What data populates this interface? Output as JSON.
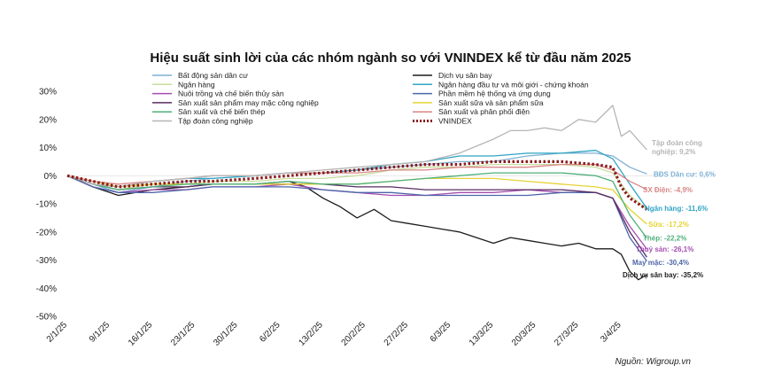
{
  "chart_data": {
    "type": "line",
    "title": "Hiệu suất sinh lời của các nhóm ngành so với VNINDEX kể từ đầu năm 2025",
    "source": "Nguồn: Wigroup.vn",
    "ylim": [
      -50,
      30
    ],
    "yticks": [
      30,
      20,
      10,
      0,
      -10,
      -20,
      -30,
      -40,
      -50
    ],
    "ytick_labels": [
      "30%",
      "20%",
      "10%",
      "0%",
      "-10%",
      "-20%",
      "-30%",
      "-40%",
      "-50%"
    ],
    "x_tick_labels": [
      "2/1/25",
      "9/1/25",
      "16/1/25",
      "23/1/25",
      "30/1/25",
      "6/2/25",
      "13/2/25",
      "20/2/25",
      "27/2/25",
      "6/3/25",
      "13/3/25",
      "20/3/25",
      "27/3/25",
      "3/4/25"
    ],
    "x_tick_positions": [
      0,
      5,
      10,
      15,
      20,
      25,
      30,
      35,
      40,
      45,
      50,
      55,
      60,
      65
    ],
    "xlim": [
      0,
      69
    ],
    "grid": false,
    "legend_position": "top",
    "series": [
      {
        "name": "Bất động sản dân cư",
        "color": "#7fb0d6",
        "dashed": false,
        "x": [
          0,
          3,
          6,
          10,
          14,
          17,
          22,
          26,
          30,
          34,
          38,
          42,
          46,
          50,
          54,
          58,
          62,
          64,
          66,
          68
        ],
        "y": [
          0,
          -3,
          -6,
          -4,
          -2,
          -1,
          0,
          1,
          1,
          2,
          3,
          4,
          5,
          5,
          7,
          8,
          8,
          7,
          3,
          0.6
        ],
        "end_label": "BĐS Dân cư: 0,6%",
        "end_y": 0.6
      },
      {
        "name": "Dịch vụ sân bay",
        "color": "#1c1c1c",
        "dashed": false,
        "x": [
          0,
          3,
          6,
          10,
          14,
          17,
          22,
          26,
          28,
          30,
          32,
          34,
          36,
          38,
          40,
          42,
          44,
          46,
          48,
          50,
          52,
          54,
          56,
          58,
          60,
          62,
          64,
          65,
          66,
          67,
          68
        ],
        "y": [
          0,
          -4,
          -7,
          -5,
          -4,
          -3,
          -3,
          -2,
          -4,
          -8,
          -11,
          -15,
          -12,
          -16,
          -17,
          -18,
          -19,
          -20,
          -22,
          -24,
          -22,
          -23,
          -24,
          -25,
          -24,
          -26,
          -26,
          -28,
          -34,
          -37,
          -35.2
        ],
        "end_label": "Dịch vụ sân bay: -35,2%",
        "end_y": -35.2
      },
      {
        "name": "Ngân hàng",
        "color": "#c9dd9e",
        "dashed": false,
        "x": [
          0,
          3,
          6,
          10,
          14,
          17,
          22,
          26,
          30,
          34,
          38,
          42,
          46,
          50,
          54,
          58,
          62,
          64,
          66,
          68
        ],
        "y": [
          0,
          -3,
          -5,
          -3,
          -3,
          -2,
          -2,
          -1,
          -1,
          0,
          2,
          3,
          3,
          4,
          4,
          4,
          3,
          1,
          -7,
          -12
        ],
        "end_label": "",
        "end_y": 0
      },
      {
        "name": "Ngân hàng đầu tư và môi giới - chứng khoán",
        "color": "#2fa4c4",
        "dashed": false,
        "x": [
          0,
          3,
          6,
          10,
          14,
          17,
          22,
          26,
          30,
          34,
          38,
          42,
          46,
          50,
          54,
          58,
          62,
          64,
          66,
          68
        ],
        "y": [
          0,
          -3,
          -4,
          -2,
          -1,
          -1,
          0,
          1,
          1,
          2,
          4,
          5,
          7,
          7,
          8,
          8,
          9,
          6,
          -3,
          -11.6
        ],
        "end_label": "Ngân hàng: -11,6%",
        "end_y": -11.6
      },
      {
        "name": "Nuôi trồng và chế biến thủy sản",
        "color": "#a54db0",
        "dashed": false,
        "x": [
          0,
          3,
          6,
          10,
          14,
          17,
          22,
          26,
          30,
          34,
          38,
          42,
          46,
          50,
          54,
          58,
          62,
          64,
          66,
          68
        ],
        "y": [
          0,
          -4,
          -6,
          -5,
          -5,
          -4,
          -4,
          -3,
          -5,
          -6,
          -7,
          -7,
          -6,
          -6,
          -5,
          -6,
          -6,
          -8,
          -18,
          -26.1
        ],
        "end_label": "Thuỷ sản: -26,1%",
        "end_y": -26.1
      },
      {
        "name": "Phần mềm hệ thống và ứng dụng",
        "color": "#4d66a8",
        "dashed": false,
        "x": [
          0,
          3,
          6,
          10,
          14,
          17,
          22,
          26,
          30,
          34,
          38,
          42,
          46,
          50,
          54,
          58,
          62,
          64,
          66,
          68
        ],
        "y": [
          0,
          -4,
          -6,
          -6,
          -5,
          -4,
          -4,
          -4,
          -5,
          -6,
          -6,
          -7,
          -7,
          -7,
          -7,
          -6,
          -6,
          -8,
          -22,
          -30.4
        ],
        "end_label": "May mặc: -30,4%",
        "end_y": -30.4
      },
      {
        "name": "Sản xuất sản phẩm may mặc công nghiệp",
        "color": "#5a2c62",
        "dashed": false,
        "x": [
          0,
          3,
          6,
          10,
          14,
          17,
          22,
          26,
          30,
          34,
          38,
          42,
          46,
          50,
          54,
          58,
          62,
          64,
          66,
          68
        ],
        "y": [
          0,
          -3,
          -5,
          -4,
          -4,
          -3,
          -3,
          -3,
          -3,
          -4,
          -4,
          -5,
          -5,
          -5,
          -5,
          -5,
          -6,
          -8,
          -20,
          -29
        ],
        "end_label": "",
        "end_y": 0
      },
      {
        "name": "Sản xuất sữa và sản phẩm sữa",
        "color": "#e5d334",
        "dashed": false,
        "x": [
          0,
          3,
          6,
          10,
          14,
          17,
          22,
          26,
          30,
          34,
          38,
          42,
          46,
          50,
          54,
          58,
          62,
          64,
          66,
          68
        ],
        "y": [
          0,
          -2,
          -4,
          -3,
          -3,
          -3,
          -3,
          -3,
          -3,
          -3,
          -2,
          -1,
          -1,
          -1,
          -2,
          -3,
          -4,
          -5,
          -12,
          -17.2
        ],
        "end_label": "Sữa: -17,2%",
        "end_y": -17.2
      },
      {
        "name": "Sản xuất và chế biến thép",
        "color": "#4fb079",
        "dashed": false,
        "x": [
          0,
          3,
          6,
          10,
          14,
          17,
          22,
          26,
          30,
          34,
          38,
          42,
          46,
          50,
          54,
          58,
          62,
          64,
          66,
          68
        ],
        "y": [
          0,
          -3,
          -5,
          -4,
          -3,
          -3,
          -3,
          -2,
          -3,
          -3,
          -2,
          -1,
          0,
          1,
          1,
          1,
          0,
          -2,
          -14,
          -22.2
        ],
        "end_label": "Thép: -22,2%",
        "end_y": -22.2
      },
      {
        "name": "Sản xuất và phân phối điện",
        "color": "#d98686",
        "dashed": false,
        "x": [
          0,
          3,
          6,
          10,
          14,
          17,
          22,
          26,
          30,
          34,
          38,
          42,
          46,
          50,
          54,
          58,
          62,
          64,
          66,
          68
        ],
        "y": [
          0,
          -2,
          -3,
          -2,
          -1,
          0,
          0,
          1,
          1,
          1,
          2,
          2,
          3,
          3,
          3,
          4,
          4,
          2,
          -2,
          -4.9
        ],
        "end_label": "SX Điện: -4,9%",
        "end_y": -4.9
      },
      {
        "name": "Tập đoàn công nghiệp",
        "color": "#b6b6b6",
        "dashed": false,
        "x": [
          0,
          3,
          6,
          10,
          14,
          17,
          22,
          26,
          30,
          34,
          38,
          42,
          46,
          50,
          52,
          54,
          56,
          58,
          60,
          62,
          64,
          65,
          66,
          68
        ],
        "y": [
          0,
          -3,
          -4,
          -2,
          -1,
          0,
          0,
          1,
          2,
          3,
          4,
          5,
          8,
          13,
          16,
          16,
          17,
          16,
          20,
          19,
          25,
          14,
          16,
          9.2
        ],
        "end_label": "Tập đoàn công nghiệp: 9,2%",
        "end_y": 9.2
      },
      {
        "name": "VNINDEX",
        "color": "#8b1a1a",
        "dashed": true,
        "x": [
          0,
          3,
          6,
          10,
          14,
          17,
          22,
          26,
          30,
          34,
          38,
          42,
          46,
          50,
          54,
          58,
          62,
          64,
          65,
          66,
          68
        ],
        "y": [
          0,
          -2,
          -4,
          -3,
          -2,
          -2,
          -1,
          0,
          1,
          2,
          3,
          4,
          4,
          5,
          5,
          5,
          4,
          3,
          -4,
          -8,
          -12
        ],
        "end_label": "",
        "end_y": 0
      }
    ]
  }
}
